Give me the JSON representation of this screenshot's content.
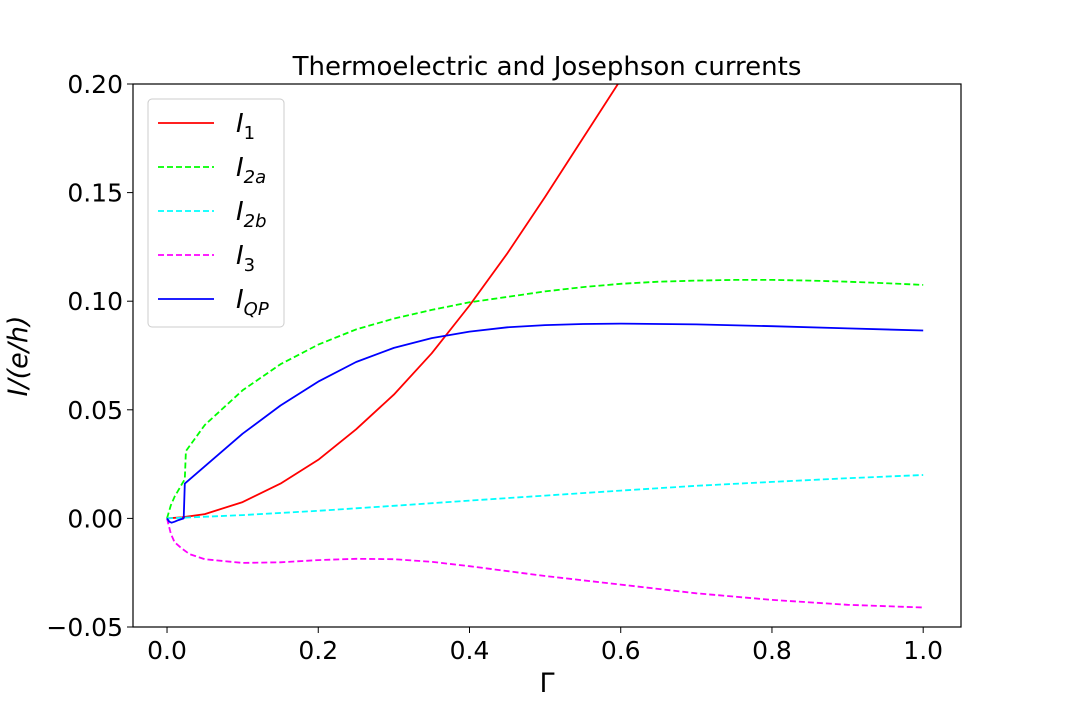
{
  "chart_data": {
    "type": "line",
    "title": "Thermoelectric and Josephson currents",
    "xlabel": "Γ",
    "ylabel": "I/(e/h)",
    "xlim": [
      -0.045,
      1.05
    ],
    "ylim": [
      -0.05,
      0.2
    ],
    "xticks": [
      0.0,
      0.2,
      0.4,
      0.6,
      0.8,
      1.0
    ],
    "xtick_labels": [
      "0.0",
      "0.2",
      "0.4",
      "0.6",
      "0.8",
      "1.0"
    ],
    "yticks": [
      -0.05,
      0.0,
      0.05,
      0.1,
      0.15,
      0.2
    ],
    "ytick_labels": [
      "−0.05",
      "0.00",
      "0.05",
      "0.10",
      "0.15",
      "0.20"
    ],
    "grid": false,
    "legend_position": "upper-left",
    "series": [
      {
        "name": "I_1",
        "label_main": "I",
        "label_sub": "1",
        "color": "#ff0000",
        "dash": "solid",
        "x": [
          0,
          0.02,
          0.05,
          0.1,
          0.15,
          0.2,
          0.25,
          0.3,
          0.35,
          0.4,
          0.45,
          0.5,
          0.55,
          0.6
        ],
        "y": [
          0,
          0.0005,
          0.002,
          0.0075,
          0.016,
          0.027,
          0.041,
          0.057,
          0.076,
          0.098,
          0.122,
          0.148,
          0.175,
          0.202
        ]
      },
      {
        "name": "I_2a",
        "label_main": "I",
        "label_sub": "2a",
        "color": "#00ff00",
        "dash": "dashed",
        "x": [
          0,
          0.005,
          0.01,
          0.015,
          0.02,
          0.0235,
          0.025,
          0.05,
          0.1,
          0.15,
          0.2,
          0.25,
          0.3,
          0.35,
          0.4,
          0.45,
          0.5,
          0.55,
          0.6,
          0.65,
          0.7,
          0.75,
          0.8,
          0.85,
          0.9,
          0.95,
          1.0
        ],
        "y": [
          0,
          0.006,
          0.01,
          0.013,
          0.016,
          0.018,
          0.031,
          0.043,
          0.059,
          0.071,
          0.08,
          0.087,
          0.092,
          0.096,
          0.0995,
          0.102,
          0.1045,
          0.1065,
          0.108,
          0.109,
          0.1095,
          0.1098,
          0.1098,
          0.1095,
          0.109,
          0.1083,
          0.1075
        ]
      },
      {
        "name": "I_2b",
        "label_main": "I",
        "label_sub": "2b",
        "color": "#00ffff",
        "dash": "dashed",
        "x": [
          0,
          0.1,
          0.2,
          0.3,
          0.4,
          0.5,
          0.6,
          0.7,
          0.8,
          0.9,
          1.0
        ],
        "y": [
          0,
          0.0015,
          0.0035,
          0.0058,
          0.0082,
          0.0105,
          0.0128,
          0.015,
          0.0168,
          0.0185,
          0.02
        ]
      },
      {
        "name": "I_3",
        "label_main": "I",
        "label_sub": "3",
        "color": "#ff00ff",
        "dash": "dashed",
        "x": [
          0,
          0.005,
          0.01,
          0.02,
          0.03,
          0.05,
          0.1,
          0.15,
          0.2,
          0.25,
          0.3,
          0.35,
          0.4,
          0.5,
          0.6,
          0.7,
          0.8,
          0.9,
          1.0
        ],
        "y": [
          0,
          -0.007,
          -0.011,
          -0.014,
          -0.0165,
          -0.0188,
          -0.0205,
          -0.0202,
          -0.0192,
          -0.0186,
          -0.0188,
          -0.02,
          -0.022,
          -0.0265,
          -0.0305,
          -0.0345,
          -0.0375,
          -0.0398,
          -0.041
        ]
      },
      {
        "name": "I_QP",
        "label_main": "I",
        "label_sub": "QP",
        "color": "#0000ff",
        "dash": "solid",
        "x": [
          0,
          0.003,
          0.006,
          0.01,
          0.015,
          0.022,
          0.0235,
          0.05,
          0.1,
          0.15,
          0.2,
          0.25,
          0.3,
          0.35,
          0.4,
          0.45,
          0.5,
          0.55,
          0.6,
          0.7,
          0.8,
          0.9,
          1.0
        ],
        "y": [
          0,
          -0.0015,
          -0.002,
          -0.0015,
          -0.0008,
          0.0,
          0.016,
          0.024,
          0.039,
          0.052,
          0.063,
          0.072,
          0.0785,
          0.083,
          0.086,
          0.088,
          0.089,
          0.0895,
          0.0897,
          0.0893,
          0.0885,
          0.0875,
          0.0865
        ]
      }
    ]
  }
}
